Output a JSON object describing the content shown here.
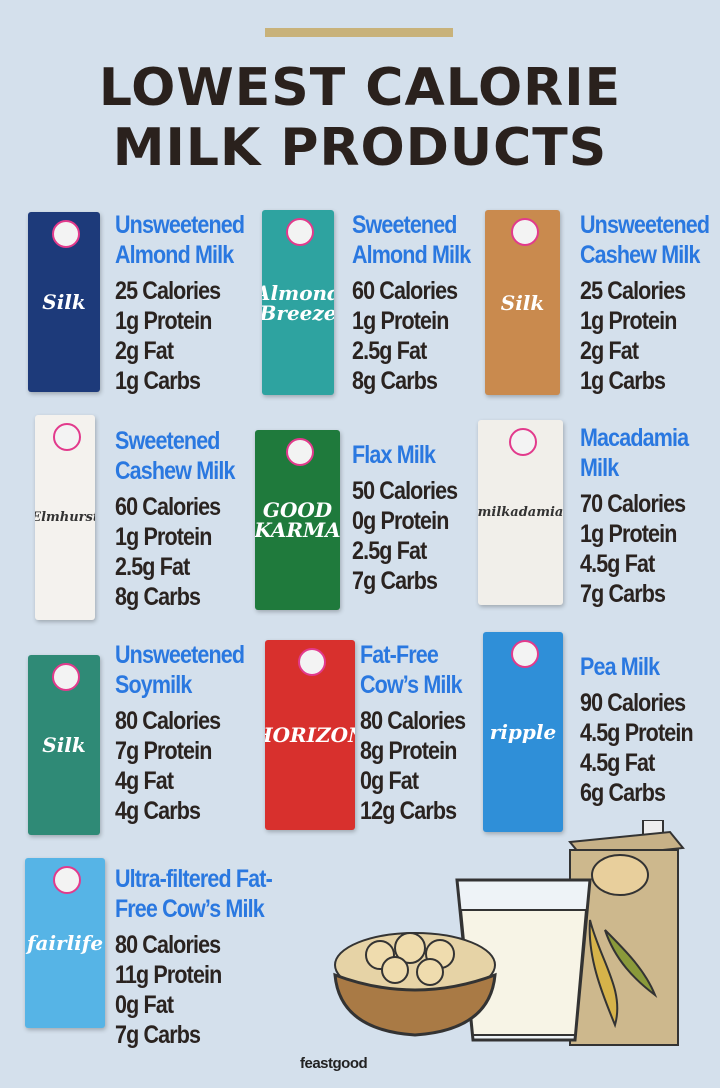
{
  "header": {
    "title_line1": "LOWEST CALORIE",
    "title_line2": "MILK PRODUCTS"
  },
  "colors": {
    "background": "#d4e0ec",
    "accent_bar": "#c8b27a",
    "product_name": "#2a78e0",
    "text": "#2a2320"
  },
  "products": [
    {
      "name": [
        "Unsweetened",
        "Almond Milk"
      ],
      "stats": [
        "25 Calories",
        "1g Protein",
        "2g Fat",
        "1g Carbs"
      ],
      "pack_logo": "Silk",
      "pack_color": "#1d3a7a"
    },
    {
      "name": [
        "Sweetened",
        "Almond Milk"
      ],
      "stats": [
        "60 Calories",
        "1g Protein",
        "2.5g Fat",
        "8g Carbs"
      ],
      "pack_logo": "Almond Breeze",
      "pack_color": "#2ea3a0"
    },
    {
      "name": [
        "Unsweetened",
        "Cashew Milk"
      ],
      "stats": [
        "25 Calories",
        "1g Protein",
        "2g Fat",
        "1g Carbs"
      ],
      "pack_logo": "Silk",
      "pack_color": "#c98a4e"
    },
    {
      "name": [
        "Sweetened",
        "Cashew Milk"
      ],
      "stats": [
        "60 Calories",
        "1g Protein",
        "2.5g Fat",
        "8g Carbs"
      ],
      "pack_logo": "Elmhurst",
      "pack_color": "#f4f2ee"
    },
    {
      "name": [
        "Flax Milk"
      ],
      "stats": [
        "50 Calories",
        "0g Protein",
        "2.5g Fat",
        "7g Carbs"
      ],
      "pack_logo": "GOOD KARMA",
      "pack_color": "#1f7a3c"
    },
    {
      "name": [
        "Macadamia",
        "Milk"
      ],
      "stats": [
        "70 Calories",
        "1g Protein",
        "4.5g Fat",
        "7g Carbs"
      ],
      "pack_logo": "milkadamia",
      "pack_color": "#f1efea"
    },
    {
      "name": [
        "Unsweetened",
        "Soymilk"
      ],
      "stats": [
        "80 Calories",
        "7g Protein",
        "4g Fat",
        "4g Carbs"
      ],
      "pack_logo": "Silk",
      "pack_color": "#2f8a76"
    },
    {
      "name": [
        "Fat-Free",
        "Cow’s Milk"
      ],
      "stats": [
        "80 Calories",
        "8g Protein",
        "0g Fat",
        "12g Carbs"
      ],
      "pack_logo": "HORIZON",
      "pack_color": "#d8302d"
    },
    {
      "name": [
        "Pea Milk"
      ],
      "stats": [
        "90 Calories",
        "4.5g Protein",
        "4.5g Fat",
        "6g Carbs"
      ],
      "pack_logo": "ripple",
      "pack_color": "#2f8fd8"
    },
    {
      "name": [
        "Ultra-filtered Fat-",
        "Free Cow’s Milk"
      ],
      "stats": [
        "80 Calories",
        "11g Protein",
        "0g Fat",
        "7g Carbs"
      ],
      "pack_logo": "fairlife",
      "pack_color": "#56b4e6"
    }
  ],
  "footer": {
    "brand": "feastgood"
  }
}
